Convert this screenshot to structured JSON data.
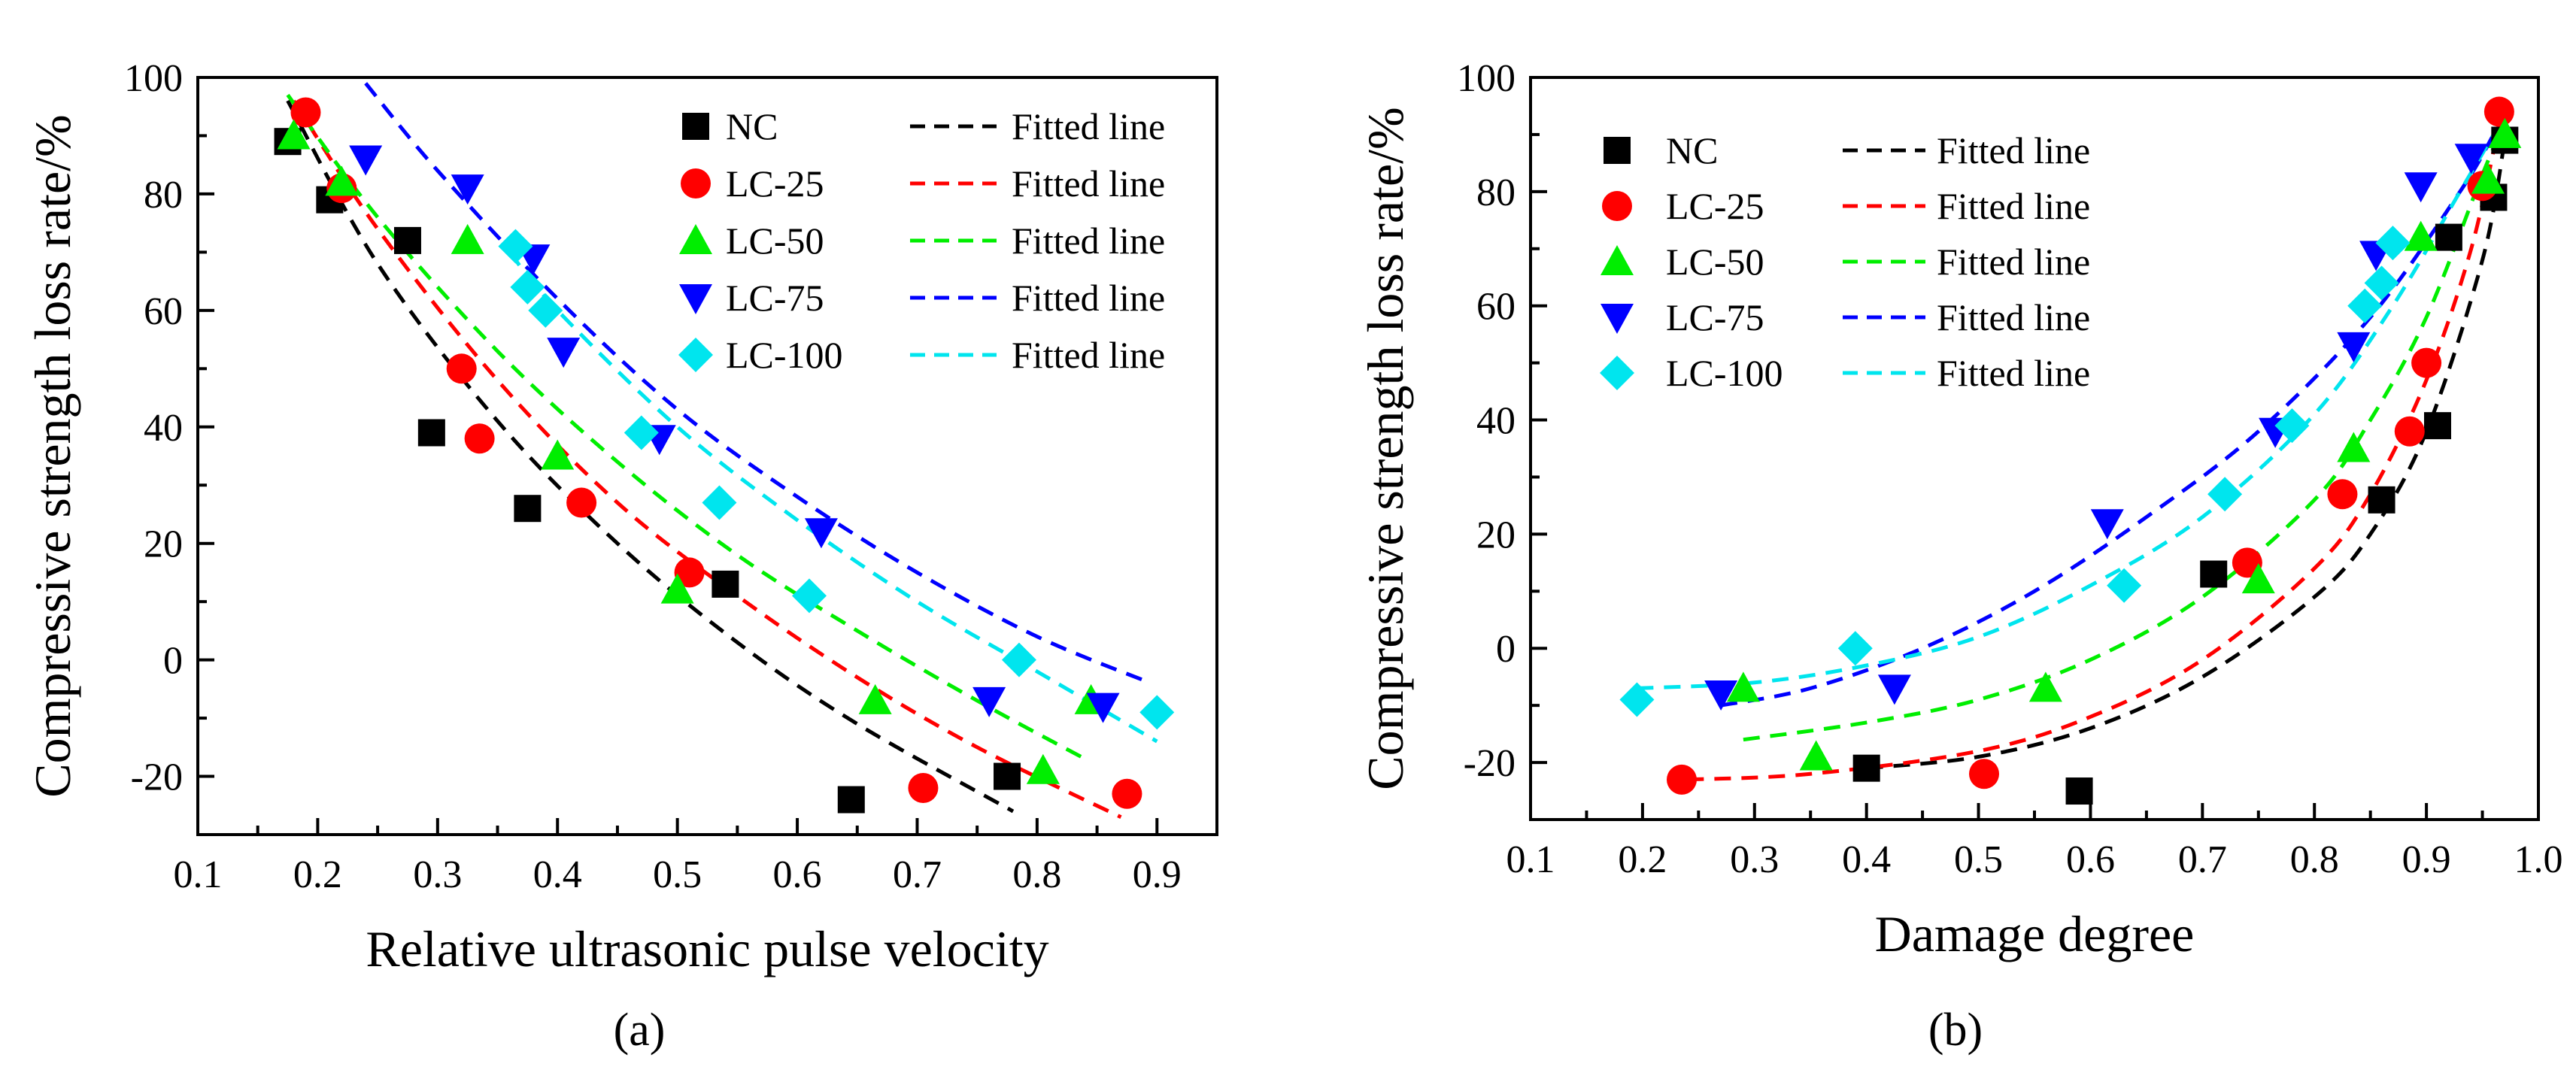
{
  "chart_data": [
    {
      "type": "scatter",
      "panel_label": "(a)",
      "xlabel": "Relative ultrasonic pulse velocity",
      "ylabel": "Compressive strength loss rate/%",
      "xlim": [
        0.1,
        0.95
      ],
      "ylim": [
        -30,
        100
      ],
      "xticks": [
        0.1,
        0.2,
        0.3,
        0.4,
        0.5,
        0.6,
        0.7,
        0.8,
        0.9
      ],
      "yticks": [
        -20,
        0,
        20,
        40,
        60,
        80,
        100
      ],
      "xtick_labels": [
        "0.1",
        "0.2",
        "0.3",
        "0.4",
        "0.5",
        "0.6",
        "0.7",
        "0.8",
        "0.9"
      ],
      "ytick_labels": [
        "-20",
        "0",
        "20",
        "40",
        "60",
        "80",
        "100"
      ],
      "legend_position": "top-right",
      "series": [
        {
          "name": "NC",
          "marker": "square",
          "color": "#000000",
          "fit_label": "Fitted line",
          "x": [
            0.175,
            0.21,
            0.275,
            0.295,
            0.375,
            0.54,
            0.645,
            0.775
          ],
          "y": [
            89,
            79,
            72,
            39,
            26,
            13,
            -24,
            -20
          ],
          "fit_x": [
            0.175,
            0.78
          ],
          "fit_curve": [
            [
              0.175,
              96
            ],
            [
              0.25,
              68
            ],
            [
              0.35,
              41
            ],
            [
              0.45,
              20
            ],
            [
              0.55,
              3
            ],
            [
              0.65,
              -11
            ],
            [
              0.78,
              -26
            ]
          ]
        },
        {
          "name": "LC-25",
          "marker": "circle",
          "color": "#ff0000",
          "fit_label": "Fitted line",
          "x": [
            0.19,
            0.22,
            0.32,
            0.335,
            0.42,
            0.51,
            0.705,
            0.875
          ],
          "y": [
            94,
            81,
            50,
            38,
            27,
            15,
            -22,
            -23
          ],
          "fit_x": [
            0.18,
            0.87
          ],
          "fit_curve": [
            [
              0.18,
              96
            ],
            [
              0.25,
              74
            ],
            [
              0.35,
              48
            ],
            [
              0.45,
              27
            ],
            [
              0.55,
              11
            ],
            [
              0.65,
              -3
            ],
            [
              0.75,
              -15
            ],
            [
              0.87,
              -27
            ]
          ]
        },
        {
          "name": "LC-50",
          "marker": "triangle-up",
          "color": "#00ee00",
          "fit_label": "Fitted line",
          "x": [
            0.18,
            0.22,
            0.325,
            0.4,
            0.5,
            0.665,
            0.805,
            0.845
          ],
          "y": [
            90,
            82,
            72,
            35,
            12,
            -7,
            -19,
            -7
          ],
          "fit_x": [
            0.175,
            0.84
          ],
          "fit_curve": [
            [
              0.175,
              97
            ],
            [
              0.25,
              76
            ],
            [
              0.35,
              53
            ],
            [
              0.45,
              34
            ],
            [
              0.55,
              18
            ],
            [
              0.65,
              5
            ],
            [
              0.75,
              -7
            ],
            [
              0.84,
              -17
            ]
          ]
        },
        {
          "name": "LC-75",
          "marker": "triangle-down",
          "color": "#0000ff",
          "fit_label": "Fitted line",
          "x": [
            0.24,
            0.325,
            0.38,
            0.405,
            0.485,
            0.62,
            0.76,
            0.855
          ],
          "y": [
            86,
            81,
            69,
            53,
            38,
            22,
            -7,
            -8
          ],
          "fit_x": [
            0.24,
            0.895
          ],
          "fit_curve": [
            [
              0.24,
              99
            ],
            [
              0.3,
              84
            ],
            [
              0.4,
              62
            ],
            [
              0.5,
              43
            ],
            [
              0.6,
              28
            ],
            [
              0.7,
              15
            ],
            [
              0.8,
              4
            ],
            [
              0.895,
              -4
            ]
          ]
        },
        {
          "name": "LC-100",
          "marker": "diamond",
          "color": "#00e5ee",
          "fit_label": "Fitted line",
          "x": [
            0.365,
            0.375,
            0.39,
            0.47,
            0.535,
            0.61,
            0.785,
            0.9
          ],
          "y": [
            71,
            64,
            60,
            39,
            27,
            11,
            0,
            -9
          ],
          "fit_x": [
            0.36,
            0.9
          ],
          "fit_curve": [
            [
              0.36,
              70
            ],
            [
              0.4,
              60
            ],
            [
              0.5,
              40
            ],
            [
              0.6,
              24
            ],
            [
              0.7,
              10
            ],
            [
              0.8,
              -2
            ],
            [
              0.9,
              -14
            ]
          ]
        }
      ]
    },
    {
      "type": "scatter",
      "panel_label": "(b)",
      "xlabel": "Damage degree",
      "ylabel": "Compressive strength loss rate/%",
      "xlim": [
        0.1,
        1.0
      ],
      "ylim": [
        -30,
        100
      ],
      "xticks": [
        0.1,
        0.2,
        0.3,
        0.4,
        0.5,
        0.6,
        0.7,
        0.8,
        0.9,
        1.0
      ],
      "yticks": [
        -20,
        0,
        20,
        40,
        60,
        80,
        100
      ],
      "xtick_labels": [
        "0.1",
        "0.2",
        "0.3",
        "0.4",
        "0.5",
        "0.6",
        "0.7",
        "0.8",
        "0.9",
        "1.0"
      ],
      "ytick_labels": [
        "-20",
        "0",
        "20",
        "40",
        "60",
        "80",
        "100"
      ],
      "legend_position": "top-left",
      "series": [
        {
          "name": "NC",
          "marker": "square",
          "color": "#000000",
          "fit_label": "Fitted line",
          "x": [
            0.4,
            0.59,
            0.71,
            0.86,
            0.91,
            0.92,
            0.96,
            0.97
          ],
          "y": [
            -21,
            -25,
            13,
            26,
            39,
            72,
            79,
            89
          ],
          "fit_curve": [
            [
              0.4,
              -21
            ],
            [
              0.5,
              -19
            ],
            [
              0.6,
              -14
            ],
            [
              0.7,
              -5
            ],
            [
              0.8,
              9
            ],
            [
              0.85,
              20
            ],
            [
              0.9,
              38
            ],
            [
              0.95,
              68
            ],
            [
              0.97,
              89
            ]
          ]
        },
        {
          "name": "LC-25",
          "marker": "circle",
          "color": "#ff0000",
          "fit_label": "Fitted line",
          "x": [
            0.235,
            0.505,
            0.74,
            0.825,
            0.885,
            0.9,
            0.95,
            0.965
          ],
          "y": [
            -23,
            -22,
            15,
            27,
            38,
            50,
            81,
            94
          ],
          "fit_curve": [
            [
              0.24,
              -23
            ],
            [
              0.35,
              -22
            ],
            [
              0.5,
              -18
            ],
            [
              0.6,
              -12
            ],
            [
              0.7,
              -2
            ],
            [
              0.8,
              14
            ],
            [
              0.85,
              27
            ],
            [
              0.9,
              47
            ],
            [
              0.94,
              70
            ],
            [
              0.965,
              92
            ]
          ]
        },
        {
          "name": "LC-50",
          "marker": "triangle-up",
          "color": "#00ee00",
          "fit_label": "Fitted line",
          "x": [
            0.29,
            0.355,
            0.56,
            0.75,
            0.835,
            0.895,
            0.955,
            0.97
          ],
          "y": [
            -7,
            -19,
            -7,
            12,
            35,
            72,
            82,
            90
          ],
          "fit_curve": [
            [
              0.29,
              -16
            ],
            [
              0.4,
              -13
            ],
            [
              0.5,
              -9
            ],
            [
              0.6,
              -2
            ],
            [
              0.7,
              9
            ],
            [
              0.8,
              26
            ],
            [
              0.85,
              40
            ],
            [
              0.9,
              58
            ],
            [
              0.95,
              83
            ],
            [
              0.97,
              92
            ]
          ]
        },
        {
          "name": "LC-75",
          "marker": "triangle-down",
          "color": "#0000ff",
          "fit_label": "Fitted line",
          "x": [
            0.27,
            0.425,
            0.615,
            0.765,
            0.835,
            0.855,
            0.895,
            0.94
          ],
          "y": [
            -8,
            -7,
            22,
            38,
            53,
            69,
            81,
            86
          ],
          "fit_curve": [
            [
              0.27,
              -10
            ],
            [
              0.35,
              -7
            ],
            [
              0.45,
              0
            ],
            [
              0.55,
              10
            ],
            [
              0.65,
              23
            ],
            [
              0.75,
              38
            ],
            [
              0.85,
              58
            ],
            [
              0.93,
              80
            ],
            [
              0.96,
              90
            ]
          ]
        },
        {
          "name": "LC-100",
          "marker": "diamond",
          "color": "#00e5ee",
          "fit_label": "Fitted line",
          "x": [
            0.195,
            0.39,
            0.63,
            0.72,
            0.78,
            0.845,
            0.86,
            0.87
          ],
          "y": [
            -9,
            0,
            11,
            27,
            39,
            60,
            64,
            71
          ],
          "fit_curve": [
            [
              0.195,
              -7
            ],
            [
              0.3,
              -6
            ],
            [
              0.4,
              -3
            ],
            [
              0.5,
              2
            ],
            [
              0.6,
              11
            ],
            [
              0.7,
              23
            ],
            [
              0.8,
              41
            ],
            [
              0.87,
              60
            ],
            [
              0.93,
              80
            ],
            [
              0.96,
              90
            ]
          ]
        }
      ]
    }
  ]
}
